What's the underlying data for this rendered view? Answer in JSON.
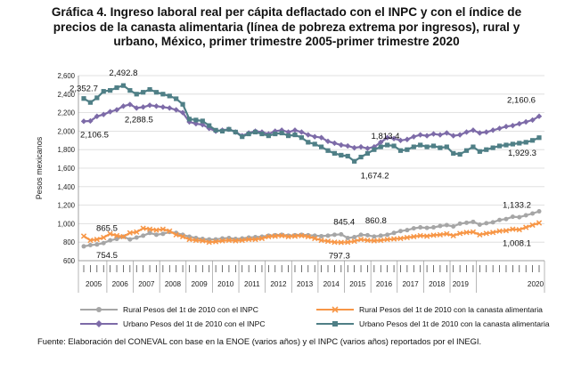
{
  "title_lines": [
    "Gráfica 4. Ingreso laboral real per cápita deflactado con el INPC y con el índice de",
    "precios de la canasta alimentaria (línea de pobreza extrema por ingresos), rural y",
    "urbano, México, primer trimestre 2005-primer trimestre 2020"
  ],
  "source": "Fuente: Elaboración del CONEVAL con base en la ENOE (varios años) y el INPC (varios años) reportados por el INEGI.",
  "chart_data": {
    "type": "line",
    "title": "Gráfica 4. Ingreso laboral real per cápita deflactado con el INPC y con el índice de precios de la canasta alimentaria (línea de pobreza extrema por ingresos), rural y urbano, México, primer trimestre 2005-primer trimestre 2020",
    "xlabel": "",
    "ylabel": "Pesos mexicanos",
    "ylim": [
      600,
      2600
    ],
    "yticks": [
      "600",
      "800",
      "1,000",
      "1,200",
      "1,400",
      "1,600",
      "1,800",
      "2,000",
      "2,200",
      "2,400",
      "2,600"
    ],
    "ytick_values": [
      600,
      800,
      1000,
      1200,
      1400,
      1600,
      1800,
      2000,
      2200,
      2400,
      2600
    ],
    "year_labels": [
      "2005",
      "2006",
      "2007",
      "2008",
      "2009",
      "2010",
      "2011",
      "2012",
      "2013",
      "2014",
      "2015",
      "2016",
      "2017",
      "2018",
      "2019",
      "2020"
    ],
    "grid": "horizontal",
    "legend_placement": "bottom",
    "colors": {
      "rural_inpc": "#a6a6a6",
      "rural_canasta": "#f79646",
      "urbano_inpc": "#7d6ba8",
      "urbano_canasta": "#4f7f86",
      "grid": "#d9d9d9",
      "axis": "#888888"
    },
    "series": [
      {
        "name": "Rural Pesos del 1t de 2010 con el INPC",
        "color_key": "rural_inpc",
        "marker": "circle",
        "values": [
          754.5,
          768,
          775,
          790,
          820,
          835,
          860,
          830,
          850,
          870,
          900,
          880,
          890,
          910,
          900,
          880,
          860,
          845,
          835,
          830,
          830,
          840,
          845,
          835,
          840,
          850,
          855,
          860,
          870,
          875,
          880,
          870,
          875,
          880,
          875,
          870,
          865,
          870,
          880,
          885,
          845.4,
          855,
          880,
          875,
          860.8,
          870,
          880,
          900,
          920,
          930,
          950,
          960,
          955,
          960,
          975,
          985,
          970,
          1000,
          1010,
          1020,
          990,
          1005,
          1015,
          1040,
          1050,
          1075,
          1070,
          1090,
          1110,
          1133.2
        ]
      },
      {
        "name": "Rural Pesos del 1t de 2010 con la canasta alimentaria",
        "color_key": "rural_canasta",
        "marker": "x",
        "values": [
          865.5,
          820,
          830,
          850,
          890,
          870,
          860,
          900,
          910,
          950,
          940,
          930,
          940,
          920,
          880,
          860,
          830,
          820,
          815,
          800,
          805,
          815,
          820,
          815,
          820,
          830,
          830,
          840,
          860,
          865,
          870,
          860,
          865,
          870,
          860,
          840,
          820,
          810,
          800,
          797.3,
          800,
          810,
          830,
          820,
          815,
          820,
          830,
          835,
          840,
          850,
          860,
          870,
          865,
          875,
          880,
          890,
          870,
          895,
          905,
          910,
          880,
          895,
          905,
          920,
          925,
          940,
          935,
          960,
          985,
          1008.1
        ]
      },
      {
        "name": "Urbano Pesos del 1t de 2010 con el INPC",
        "color_key": "urbano_inpc",
        "marker": "diamond",
        "values": [
          2106.5,
          2110,
          2160,
          2180,
          2210,
          2230,
          2270,
          2288.5,
          2250,
          2260,
          2280,
          2270,
          2260,
          2250,
          2230,
          2200,
          2100,
          2080,
          2070,
          2030,
          2000,
          2010,
          2020,
          1990,
          1950,
          1980,
          2000,
          1990,
          1970,
          2000,
          2010,
          1990,
          2010,
          1990,
          1960,
          1940,
          1930,
          1890,
          1870,
          1850,
          1840,
          1820,
          1830,
          1813.4,
          1830,
          1880,
          1930,
          1920,
          1900,
          1910,
          1940,
          1960,
          1950,
          1970,
          1960,
          1980,
          1950,
          1960,
          1990,
          2010,
          1980,
          1990,
          2010,
          2030,
          2050,
          2060,
          2080,
          2100,
          2120,
          2160.6
        ]
      },
      {
        "name": "Urbano Pesos del 1t de 2010 con la canasta alimentaria",
        "color_key": "urbano_canasta",
        "marker": "square",
        "values": [
          2352.7,
          2310,
          2360,
          2430,
          2440,
          2470,
          2492.8,
          2440,
          2400,
          2420,
          2450,
          2420,
          2400,
          2380,
          2350,
          2290,
          2130,
          2120,
          2110,
          2060,
          2010,
          2000,
          2020,
          1990,
          1940,
          1970,
          1990,
          1970,
          1950,
          1970,
          1980,
          1950,
          1960,
          1930,
          1880,
          1860,
          1830,
          1790,
          1760,
          1740,
          1730,
          1674.2,
          1720,
          1760,
          1800,
          1830,
          1850,
          1840,
          1790,
          1800,
          1830,
          1850,
          1830,
          1840,
          1820,
          1830,
          1760,
          1750,
          1790,
          1830,
          1780,
          1800,
          1820,
          1840,
          1850,
          1860,
          1870,
          1880,
          1900,
          1929.3
        ]
      }
    ],
    "data_labels": [
      {
        "text": "2,352.7",
        "series": 3,
        "index": 0
      },
      {
        "text": "2,492.8",
        "series": 3,
        "index": 6
      },
      {
        "text": "2,106.5",
        "series": 2,
        "index": 0
      },
      {
        "text": "2,288.5",
        "series": 2,
        "index": 7
      },
      {
        "text": "1,813.4",
        "series": 2,
        "index": 43
      },
      {
        "text": "1,674.2",
        "series": 3,
        "index": 41
      },
      {
        "text": "2,160.6",
        "series": 2,
        "index": 69
      },
      {
        "text": "1,929.3",
        "series": 3,
        "index": 69
      },
      {
        "text": "865.5",
        "series": 1,
        "index": 0
      },
      {
        "text": "754.5",
        "series": 0,
        "index": 0
      },
      {
        "text": "845.4",
        "series": 0,
        "index": 40
      },
      {
        "text": "860.8",
        "series": 0,
        "index": 44
      },
      {
        "text": "797.3",
        "series": 1,
        "index": 39
      },
      {
        "text": "1,133.2",
        "series": 0,
        "index": 69
      },
      {
        "text": "1,008.1",
        "series": 1,
        "index": 69
      }
    ]
  }
}
